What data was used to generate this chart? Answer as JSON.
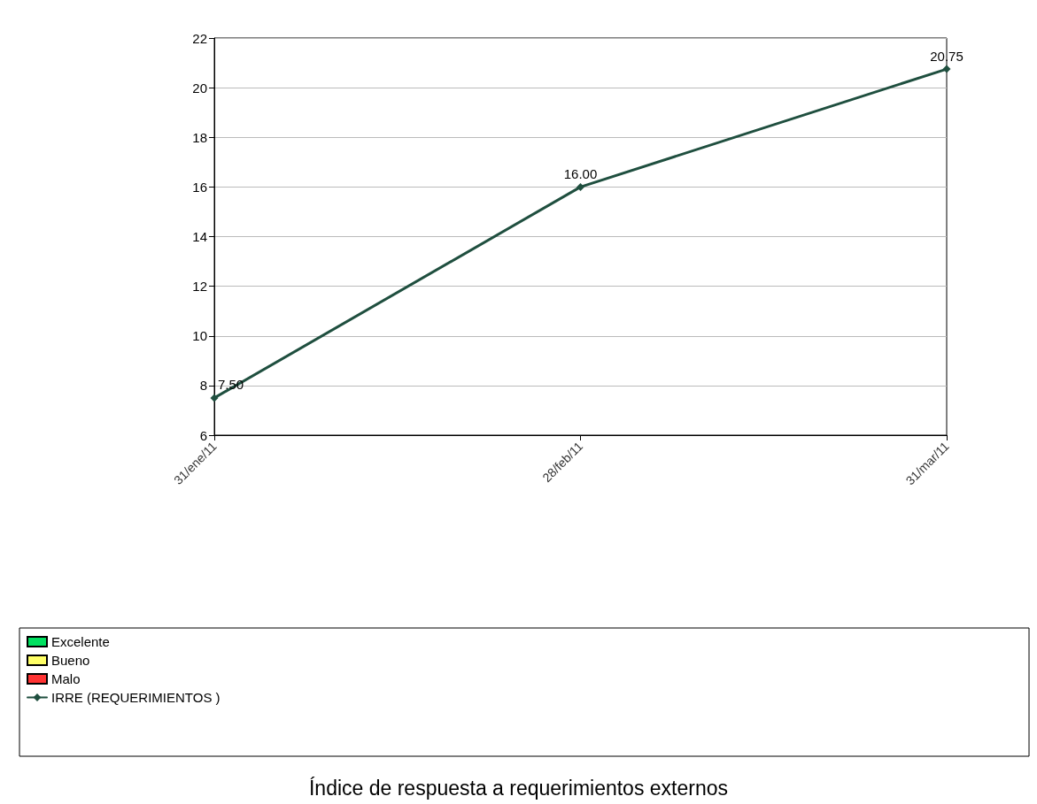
{
  "chart_data": {
    "type": "line",
    "title": "Índice de respuesta a requerimientos externos",
    "categories": [
      "31/ene/11",
      "28/feb/11",
      "31/mar/11"
    ],
    "series": [
      {
        "name": "Excelente",
        "type": "bar",
        "color": "#00e060",
        "values": [
          null,
          null,
          null
        ]
      },
      {
        "name": "Bueno",
        "type": "bar",
        "color": "#ffff66",
        "values": [
          null,
          null,
          null
        ]
      },
      {
        "name": "Malo",
        "type": "bar",
        "color": "#ff3333",
        "values": [
          null,
          null,
          null
        ]
      },
      {
        "name": "IRRE (REQUERIMIENTOS )",
        "color": "#1f4f3f",
        "values": [
          7.5,
          16,
          20.75
        ],
        "value_labels": [
          "7.50",
          "16.00",
          "20.75"
        ]
      }
    ],
    "ylim": [
      6,
      22
    ],
    "yticks": [
      6,
      8,
      10,
      12,
      14,
      16,
      18,
      20,
      22
    ],
    "grid": "y",
    "legend": "bottom",
    "marker": "diamond",
    "line_style": "solid"
  }
}
